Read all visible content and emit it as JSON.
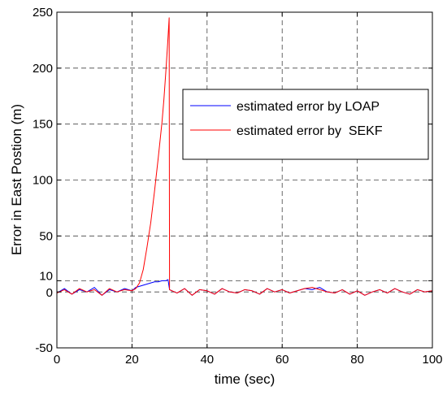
{
  "chart_data": {
    "type": "line",
    "title": "",
    "xlabel": "time (sec)",
    "ylabel": "Error in East Postion  (m)",
    "xlim": [
      0,
      100
    ],
    "ylim": [
      -50,
      250
    ],
    "x_ticks": [
      0,
      20,
      40,
      60,
      80,
      100
    ],
    "x_tick_labels": [
      "0",
      "20",
      "40",
      "60",
      "80",
      "100"
    ],
    "y_ticks": [
      -50,
      0,
      10,
      50,
      100,
      150,
      200,
      250
    ],
    "y_tick_labels": [
      "-50",
      "0",
      "10",
      "50",
      "100",
      "150",
      "200",
      "250"
    ],
    "grid": true,
    "legend_position": "upper-right",
    "series": [
      {
        "name": "estimated error by LOAP",
        "color": "#0000ff",
        "x": [
          0,
          2,
          4,
          6,
          8,
          10,
          12,
          14,
          16,
          18,
          20,
          21,
          22,
          23,
          24,
          25,
          26,
          27,
          28,
          29,
          29.6,
          30,
          32,
          34,
          36,
          38,
          40,
          42,
          44,
          46,
          48,
          50,
          52,
          54,
          56,
          58,
          60,
          62,
          64,
          66,
          68,
          70,
          72,
          74,
          76,
          78,
          80,
          82,
          84,
          86,
          88,
          90,
          92,
          94,
          96,
          98,
          100
        ],
        "y": [
          -1,
          3,
          -2,
          2,
          0,
          4,
          -3,
          2,
          0,
          3,
          1,
          4,
          5,
          6,
          7,
          8,
          9,
          9,
          10,
          10,
          11,
          2,
          -1,
          3,
          -3,
          2,
          1,
          -2,
          3,
          0,
          -1,
          2,
          1,
          -2,
          3,
          0,
          2,
          -1,
          1,
          3,
          2,
          4,
          0,
          -1,
          2,
          -2,
          1,
          -3,
          0,
          2,
          -1,
          3,
          0,
          -2,
          2,
          0,
          1
        ]
      },
      {
        "name": "estimated error by  SEKF",
        "color": "#ff0000",
        "x": [
          0,
          2,
          4,
          6,
          8,
          10,
          12,
          14,
          16,
          18,
          20,
          21,
          22,
          23,
          24,
          25,
          26,
          27,
          28,
          28.5,
          29,
          29.5,
          29.9,
          30,
          32,
          34,
          36,
          38,
          40,
          42,
          44,
          46,
          48,
          50,
          52,
          54,
          56,
          58,
          60,
          62,
          64,
          66,
          68,
          70,
          72,
          74,
          76,
          78,
          80,
          82,
          84,
          86,
          88,
          90,
          92,
          94,
          96,
          98,
          100
        ],
        "y": [
          -1,
          2,
          -2,
          3,
          0,
          2,
          -3,
          3,
          0,
          2,
          1,
          3,
          8,
          20,
          40,
          62,
          90,
          120,
          152,
          172,
          196,
          222,
          245,
          2,
          -1,
          3,
          -3,
          2,
          1,
          -2,
          3,
          0,
          -1,
          2,
          1,
          -2,
          3,
          0,
          2,
          -1,
          1,
          3,
          4,
          2,
          0,
          -1,
          2,
          -2,
          1,
          -3,
          0,
          2,
          -1,
          3,
          0,
          -2,
          2,
          0,
          1
        ]
      }
    ]
  }
}
